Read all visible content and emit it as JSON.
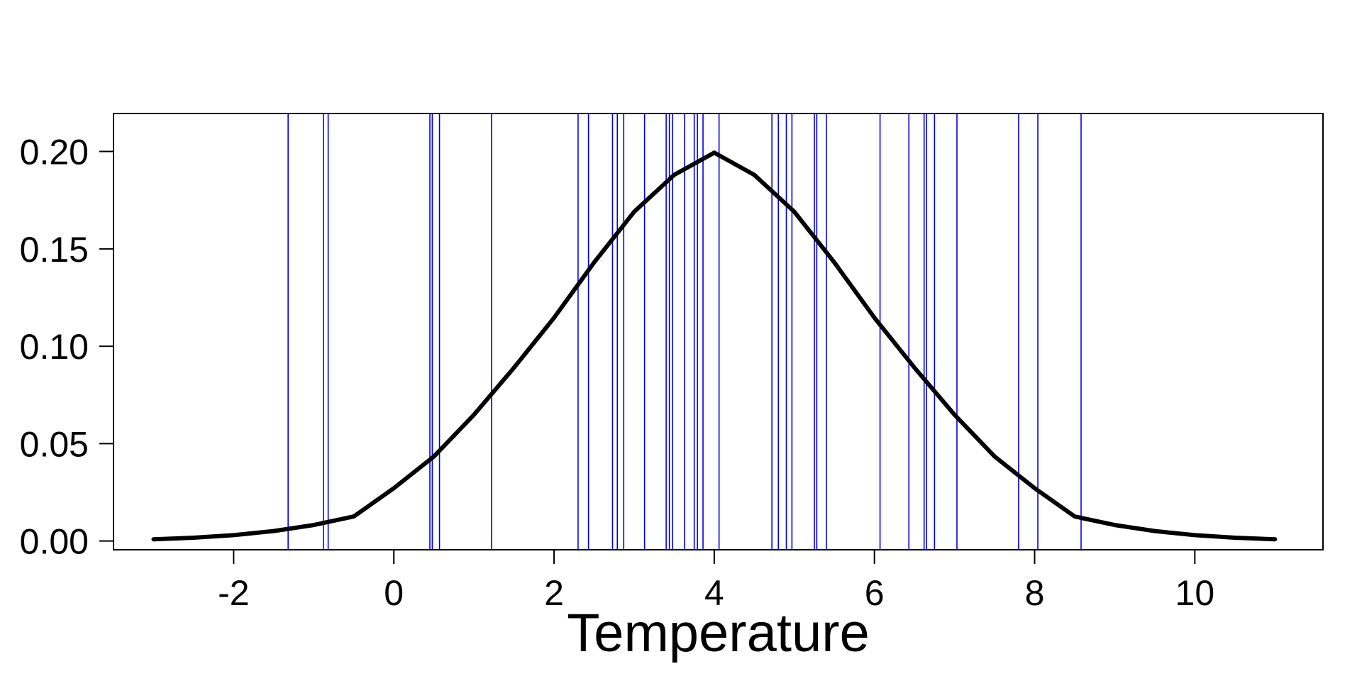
{
  "chart_data": {
    "type": "line",
    "title": "",
    "xlabel": "Temperature",
    "ylabel": "",
    "xlim": [
      -3.5,
      11.6
    ],
    "ylim": [
      -0.0045,
      0.2195
    ],
    "x_ticks": [
      -2,
      0,
      2,
      4,
      6,
      8,
      10
    ],
    "x_tick_labels": [
      "-2",
      "0",
      "2",
      "4",
      "6",
      "8",
      "10"
    ],
    "y_ticks": [
      0.0,
      0.05,
      0.1,
      0.15,
      0.2
    ],
    "y_tick_labels": [
      "0.00",
      "0.05",
      "0.10",
      "0.15",
      "0.20"
    ],
    "grid": false,
    "legend": "none",
    "series": [
      {
        "kind": "density-curve",
        "color": "#000000",
        "x": [
          -3,
          -2.5,
          -2,
          -1.5,
          -1,
          -0.5,
          0,
          0.5,
          1,
          1.5,
          2,
          2.5,
          3,
          3.5,
          4,
          4.5,
          5,
          5.5,
          6,
          6.5,
          7,
          7.5,
          8,
          8.5,
          9,
          9.5,
          10,
          10.5,
          11
        ],
        "y": [
          0.0009,
          0.0017,
          0.003,
          0.0051,
          0.0082,
          0.0126,
          0.0271,
          0.0434,
          0.0648,
          0.089,
          0.1146,
          0.143,
          0.169,
          0.188,
          0.1994,
          0.188,
          0.169,
          0.143,
          0.1146,
          0.089,
          0.0648,
          0.0434,
          0.0271,
          0.0126,
          0.0082,
          0.0051,
          0.003,
          0.0017,
          0.0009
        ]
      },
      {
        "kind": "vertical-lines",
        "color": "#0000ee",
        "x": [
          -1.32,
          -0.88,
          -0.82,
          0.45,
          0.48,
          0.57,
          1.22,
          2.3,
          2.43,
          2.73,
          2.79,
          2.87,
          3.13,
          3.4,
          3.44,
          3.48,
          3.63,
          3.75,
          3.79,
          3.86,
          4.06,
          4.72,
          4.8,
          4.9,
          4.97,
          5.25,
          5.28,
          5.4,
          6.07,
          6.43,
          6.62,
          6.65,
          6.75,
          7.03,
          7.8,
          8.04,
          8.58
        ]
      }
    ]
  }
}
